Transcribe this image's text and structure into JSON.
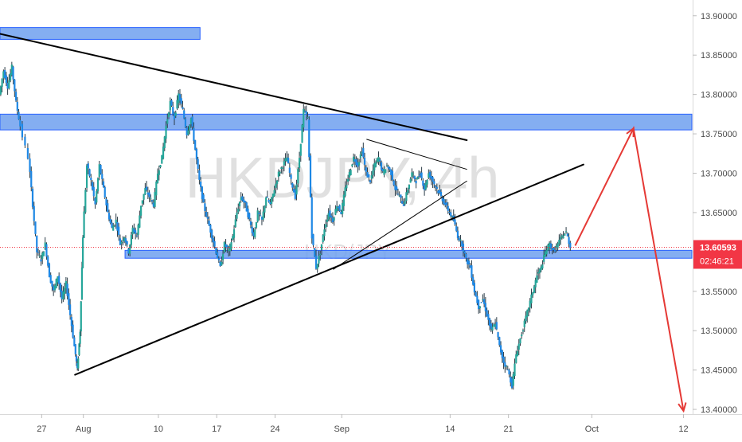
{
  "watermark": {
    "symbol": "HKDJPY, 4h",
    "pair": "HKD/JPY"
  },
  "chart_data": {
    "type": "candlestick",
    "symbol": "HKD/JPY",
    "timeframe": "4h",
    "colors": {
      "up": "#26a69a",
      "down": "#1e88e5",
      "wick_up": "#1b2f3a",
      "zone_fill": "#6fa0ee",
      "zone_stroke": "#2962ff",
      "trendline": "#000000",
      "projection": "#e53935",
      "last_price_bg": "#f23645",
      "axis_text": "#4a4a4a",
      "axis_line": "#d9d9d9"
    },
    "x_axis": {
      "start": "2020-07-22",
      "end": "2020-10-13",
      "ticks": [
        {
          "date": "2020-07-27",
          "label": "27"
        },
        {
          "date": "2020-08-01",
          "label": "Aug"
        },
        {
          "date": "2020-08-10",
          "label": "10"
        },
        {
          "date": "2020-08-17",
          "label": "17"
        },
        {
          "date": "2020-08-24",
          "label": "24"
        },
        {
          "date": "2020-09-01",
          "label": "Sep"
        },
        {
          "date": "2020-09-14",
          "label": "14"
        },
        {
          "date": "2020-09-21",
          "label": "21"
        },
        {
          "date": "2020-10-01",
          "label": "Oct"
        },
        {
          "date": "2020-10-12",
          "label": "12"
        }
      ]
    },
    "y_axis": {
      "range": [
        13.395,
        13.92
      ],
      "ticks": [
        "13.40000",
        "13.45000",
        "13.50000",
        "13.55000",
        "13.60000",
        "13.65000",
        "13.70000",
        "13.75000",
        "13.80000",
        "13.85000",
        "13.90000"
      ]
    },
    "last_price": {
      "value": 13.60593,
      "label": "13.60593",
      "countdown": "02:46:21"
    },
    "price_path": [
      [
        "2020-07-22",
        13.8
      ],
      [
        "2020-07-22T12",
        13.83
      ],
      [
        "2020-07-23",
        13.81
      ],
      [
        "2020-07-23T12",
        13.835
      ],
      [
        "2020-07-24",
        13.79
      ],
      [
        "2020-07-24T12",
        13.76
      ],
      [
        "2020-07-25T12",
        13.72
      ],
      [
        "2020-07-26",
        13.66
      ],
      [
        "2020-07-26T12",
        13.6
      ],
      [
        "2020-07-27",
        13.59
      ],
      [
        "2020-07-27T12",
        13.61
      ],
      [
        "2020-07-28",
        13.57
      ],
      [
        "2020-07-28T12",
        13.55
      ],
      [
        "2020-07-29",
        13.57
      ],
      [
        "2020-07-29T12",
        13.54
      ],
      [
        "2020-07-30",
        13.56
      ],
      [
        "2020-07-30T12",
        13.52
      ],
      [
        "2020-07-31",
        13.48
      ],
      [
        "2020-07-31T08",
        13.45
      ],
      [
        "2020-07-31T16",
        13.5
      ],
      [
        "2020-08-01",
        13.62
      ],
      [
        "2020-08-01T12",
        13.71
      ],
      [
        "2020-08-02",
        13.69
      ],
      [
        "2020-08-02T12",
        13.66
      ],
      [
        "2020-08-03",
        13.71
      ],
      [
        "2020-08-03T12",
        13.68
      ],
      [
        "2020-08-04",
        13.65
      ],
      [
        "2020-08-04T12",
        13.63
      ],
      [
        "2020-08-05",
        13.64
      ],
      [
        "2020-08-05T12",
        13.61
      ],
      [
        "2020-08-06",
        13.62
      ],
      [
        "2020-08-06T12",
        13.6
      ],
      [
        "2020-08-07",
        13.63
      ],
      [
        "2020-08-07T12",
        13.62
      ],
      [
        "2020-08-08",
        13.66
      ],
      [
        "2020-08-08T12",
        13.68
      ],
      [
        "2020-08-09",
        13.67
      ],
      [
        "2020-08-09T12",
        13.66
      ],
      [
        "2020-08-10",
        13.7
      ],
      [
        "2020-08-10T12",
        13.72
      ],
      [
        "2020-08-11",
        13.76
      ],
      [
        "2020-08-11T12",
        13.79
      ],
      [
        "2020-08-12",
        13.77
      ],
      [
        "2020-08-12T12",
        13.8
      ],
      [
        "2020-08-13",
        13.78
      ],
      [
        "2020-08-13T12",
        13.75
      ],
      [
        "2020-08-14",
        13.77
      ],
      [
        "2020-08-14T12",
        13.73
      ],
      [
        "2020-08-15",
        13.69
      ],
      [
        "2020-08-15T12",
        13.66
      ],
      [
        "2020-08-16",
        13.64
      ],
      [
        "2020-08-16T12",
        13.62
      ],
      [
        "2020-08-17",
        13.6
      ],
      [
        "2020-08-17T12",
        13.58
      ],
      [
        "2020-08-18",
        13.61
      ],
      [
        "2020-08-18T12",
        13.6
      ],
      [
        "2020-08-19",
        13.62
      ],
      [
        "2020-08-19T12",
        13.65
      ],
      [
        "2020-08-20",
        13.67
      ],
      [
        "2020-08-20T12",
        13.66
      ],
      [
        "2020-08-21",
        13.64
      ],
      [
        "2020-08-21T12",
        13.62
      ],
      [
        "2020-08-22",
        13.65
      ],
      [
        "2020-08-22T12",
        13.64
      ],
      [
        "2020-08-23",
        13.67
      ],
      [
        "2020-08-23T12",
        13.66
      ],
      [
        "2020-08-24",
        13.68
      ],
      [
        "2020-08-24T12",
        13.7
      ],
      [
        "2020-08-25",
        13.71
      ],
      [
        "2020-08-25T12",
        13.72
      ],
      [
        "2020-08-26",
        13.69
      ],
      [
        "2020-08-26T12",
        13.67
      ],
      [
        "2020-08-27",
        13.72
      ],
      [
        "2020-08-27T12",
        13.78
      ],
      [
        "2020-08-28",
        13.77
      ],
      [
        "2020-08-28T12",
        13.62
      ],
      [
        "2020-08-29",
        13.58
      ],
      [
        "2020-08-29T12",
        13.6
      ],
      [
        "2020-08-30",
        13.63
      ],
      [
        "2020-08-30T12",
        13.65
      ],
      [
        "2020-08-31",
        13.64
      ],
      [
        "2020-08-31T12",
        13.66
      ],
      [
        "2020-09-01",
        13.65
      ],
      [
        "2020-09-01T12",
        13.68
      ],
      [
        "2020-09-02",
        13.7
      ],
      [
        "2020-09-02T12",
        13.72
      ],
      [
        "2020-09-03",
        13.71
      ],
      [
        "2020-09-03T12",
        13.73
      ],
      [
        "2020-09-04",
        13.7
      ],
      [
        "2020-09-04T12",
        13.69
      ],
      [
        "2020-09-05",
        13.71
      ],
      [
        "2020-09-05T12",
        13.72
      ],
      [
        "2020-09-06",
        13.7
      ],
      [
        "2020-09-06T12",
        13.71
      ],
      [
        "2020-09-07",
        13.7
      ],
      [
        "2020-09-07T12",
        13.68
      ],
      [
        "2020-09-08",
        13.67
      ],
      [
        "2020-09-08T12",
        13.66
      ],
      [
        "2020-09-09",
        13.68
      ],
      [
        "2020-09-09T12",
        13.7
      ],
      [
        "2020-09-10",
        13.69
      ],
      [
        "2020-09-10T12",
        13.7
      ],
      [
        "2020-09-11",
        13.68
      ],
      [
        "2020-09-11T12",
        13.7
      ],
      [
        "2020-09-12",
        13.69
      ],
      [
        "2020-09-12T12",
        13.68
      ],
      [
        "2020-09-13",
        13.67
      ],
      [
        "2020-09-13T12",
        13.66
      ],
      [
        "2020-09-14",
        13.65
      ],
      [
        "2020-09-14T12",
        13.64
      ],
      [
        "2020-09-15",
        13.62
      ],
      [
        "2020-09-15T12",
        13.61
      ],
      [
        "2020-09-16",
        13.59
      ],
      [
        "2020-09-16T12",
        13.58
      ],
      [
        "2020-09-17",
        13.55
      ],
      [
        "2020-09-17T12",
        13.53
      ],
      [
        "2020-09-18",
        13.54
      ],
      [
        "2020-09-18T12",
        13.52
      ],
      [
        "2020-09-19",
        13.5
      ],
      [
        "2020-09-19T12",
        13.51
      ],
      [
        "2020-09-20",
        13.48
      ],
      [
        "2020-09-20T12",
        13.46
      ],
      [
        "2020-09-21",
        13.45
      ],
      [
        "2020-09-21T12",
        13.43
      ],
      [
        "2020-09-22",
        13.47
      ],
      [
        "2020-09-22T12",
        13.49
      ],
      [
        "2020-09-23",
        13.51
      ],
      [
        "2020-09-23T12",
        13.53
      ],
      [
        "2020-09-24",
        13.55
      ],
      [
        "2020-09-24T12",
        13.57
      ],
      [
        "2020-09-25",
        13.58
      ],
      [
        "2020-09-25T12",
        13.6
      ],
      [
        "2020-09-26",
        13.61
      ],
      [
        "2020-09-26T12",
        13.6
      ],
      [
        "2020-09-27",
        13.61
      ],
      [
        "2020-09-27T12",
        13.62
      ],
      [
        "2020-09-28",
        13.625
      ],
      [
        "2020-09-28T12",
        13.60593
      ]
    ],
    "resistance_zones": [
      {
        "name": "top-left-zone",
        "from": "2020-07-22",
        "to": "2020-08-15",
        "low": 13.87,
        "high": 13.885
      },
      {
        "name": "upper-zone",
        "from": "2020-07-22",
        "to": "2020-10-13",
        "low": 13.755,
        "high": 13.775
      },
      {
        "name": "support-zone",
        "from": "2020-08-06",
        "to": "2020-10-13",
        "low": 13.592,
        "high": 13.602
      }
    ],
    "trendlines": [
      {
        "name": "descending-resistance",
        "p1": [
          "2020-07-22",
          13.877
        ],
        "p2": [
          "2020-09-16",
          13.742
        ]
      },
      {
        "name": "ascending-support",
        "p1": [
          "2020-07-31",
          13.444
        ],
        "p2": [
          "2020-09-30",
          13.711
        ]
      },
      {
        "name": "pennant-top",
        "p1": [
          "2020-09-04",
          13.743
        ],
        "p2": [
          "2020-09-16",
          13.705
        ]
      },
      {
        "name": "pennant-bottom",
        "p1": [
          "2020-08-31",
          13.578
        ],
        "p2": [
          "2020-09-16",
          13.69
        ]
      }
    ],
    "projection": [
      [
        "2020-09-29",
        13.608
      ],
      [
        "2020-10-06",
        13.757
      ],
      [
        "2020-10-12",
        13.398
      ]
    ]
  }
}
